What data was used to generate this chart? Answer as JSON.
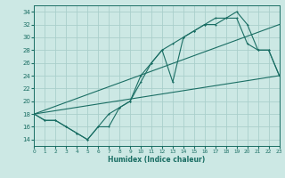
{
  "xlabel": "Humidex (Indice chaleur)",
  "xlim": [
    0,
    23
  ],
  "ylim": [
    13,
    35
  ],
  "yticks": [
    14,
    16,
    18,
    20,
    22,
    24,
    26,
    28,
    30,
    32,
    34
  ],
  "xticks": [
    0,
    1,
    2,
    3,
    4,
    5,
    6,
    7,
    8,
    9,
    10,
    11,
    12,
    13,
    14,
    15,
    16,
    17,
    18,
    19,
    20,
    21,
    22,
    23
  ],
  "bg_color": "#cce8e4",
  "grid_color": "#aacfcb",
  "line_color": "#1a6e64",
  "lines": [
    {
      "x": [
        0,
        1,
        2,
        3,
        4,
        5,
        6,
        7,
        8,
        9,
        10,
        11,
        12,
        13,
        14,
        15,
        16,
        17,
        18,
        19,
        20,
        21,
        22,
        23
      ],
      "y": [
        18,
        17,
        17,
        16,
        15,
        14,
        16,
        18,
        19,
        20,
        23,
        26,
        28,
        29,
        30,
        31,
        32,
        32,
        33,
        34,
        32,
        28,
        28,
        24
      ],
      "has_marker": true,
      "markersize": 2.0
    },
    {
      "x": [
        0,
        1,
        2,
        3,
        4,
        5,
        6,
        7,
        8,
        9,
        10,
        11,
        12,
        13,
        14,
        15,
        16,
        17,
        18,
        19,
        20,
        21,
        22,
        23
      ],
      "y": [
        18,
        17,
        17,
        16,
        15,
        14,
        16,
        16,
        19,
        20,
        24,
        26,
        28,
        23,
        30,
        31,
        32,
        33,
        33,
        33,
        29,
        28,
        28,
        24
      ],
      "has_marker": true,
      "markersize": 2.0
    },
    {
      "x": [
        0,
        23
      ],
      "y": [
        18,
        24
      ],
      "has_marker": false,
      "markersize": 0
    },
    {
      "x": [
        0,
        23
      ],
      "y": [
        18,
        32
      ],
      "has_marker": false,
      "markersize": 0
    }
  ]
}
